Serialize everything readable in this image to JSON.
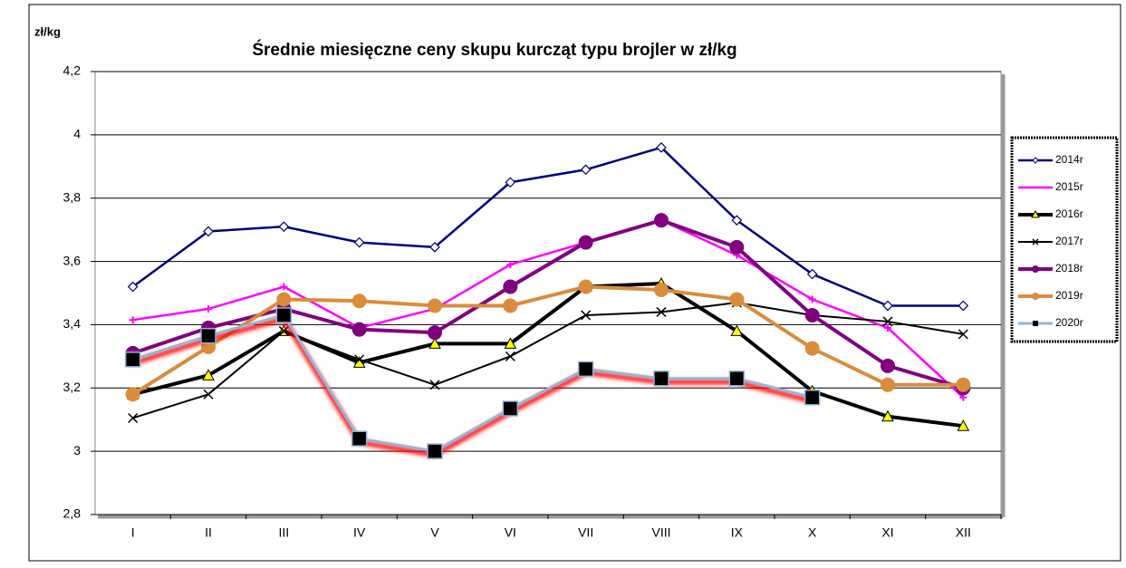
{
  "chart_data": {
    "type": "line",
    "title": "Średnie miesięczne ceny skupu kurcząt typu brojler w zł/kg",
    "y_label": "zł/kg",
    "categories": [
      "I",
      "II",
      "III",
      "IV",
      "V",
      "VI",
      "VII",
      "VIII",
      "IX",
      "X",
      "XI",
      "XII"
    ],
    "ylim": [
      2.8,
      4.2
    ],
    "yticks": [
      {
        "value": 2.8,
        "label": "2,8"
      },
      3,
      {
        "value": 3.2,
        "label": "3,2"
      },
      {
        "value": 3.4,
        "label": "3,4"
      },
      {
        "value": 3.6,
        "label": "3,6"
      },
      {
        "value": 3.8,
        "label": "3,8"
      },
      4,
      {
        "value": 4.2,
        "label": "4,2"
      }
    ],
    "grid": true,
    "legend": "right",
    "series": [
      {
        "name": "2014r",
        "color": "#000080",
        "marker": "diamond",
        "values": [
          3.52,
          3.695,
          3.71,
          3.66,
          3.645,
          3.85,
          3.89,
          3.96,
          3.73,
          3.56,
          3.46,
          3.46
        ]
      },
      {
        "name": "2015r",
        "color": "#ff00ff",
        "marker": "star",
        "values": [
          3.415,
          3.45,
          3.52,
          3.39,
          3.45,
          3.59,
          3.66,
          3.73,
          3.62,
          3.48,
          3.39,
          3.17
        ]
      },
      {
        "name": "2016r",
        "color": "#000000",
        "marker": "triangle",
        "values": [
          3.18,
          3.24,
          3.38,
          3.28,
          3.34,
          3.34,
          3.52,
          3.53,
          3.38,
          3.19,
          3.11,
          3.08
        ]
      },
      {
        "name": "2017r",
        "color": "#000000",
        "marker": "cross",
        "values": [
          3.105,
          3.18,
          3.38,
          3.29,
          3.21,
          3.3,
          3.43,
          3.44,
          3.47,
          3.43,
          3.41,
          3.37
        ]
      },
      {
        "name": "2018r",
        "color": "#800080",
        "marker": "circle",
        "values": [
          3.31,
          3.39,
          3.45,
          3.385,
          3.375,
          3.52,
          3.66,
          3.73,
          3.645,
          3.43,
          3.27,
          3.2
        ]
      },
      {
        "name": "2019r",
        "color": "#d98c3c",
        "marker": "circle",
        "values": [
          3.18,
          3.33,
          3.48,
          3.475,
          3.46,
          3.46,
          3.52,
          3.51,
          3.48,
          3.325,
          3.21,
          3.21
        ]
      },
      {
        "name": "2020r",
        "color": "#95b3d7",
        "marker": "square",
        "values": [
          3.29,
          3.365,
          3.43,
          3.04,
          3.0,
          3.135,
          3.26,
          3.23,
          3.23,
          3.17,
          null,
          null
        ]
      }
    ]
  }
}
